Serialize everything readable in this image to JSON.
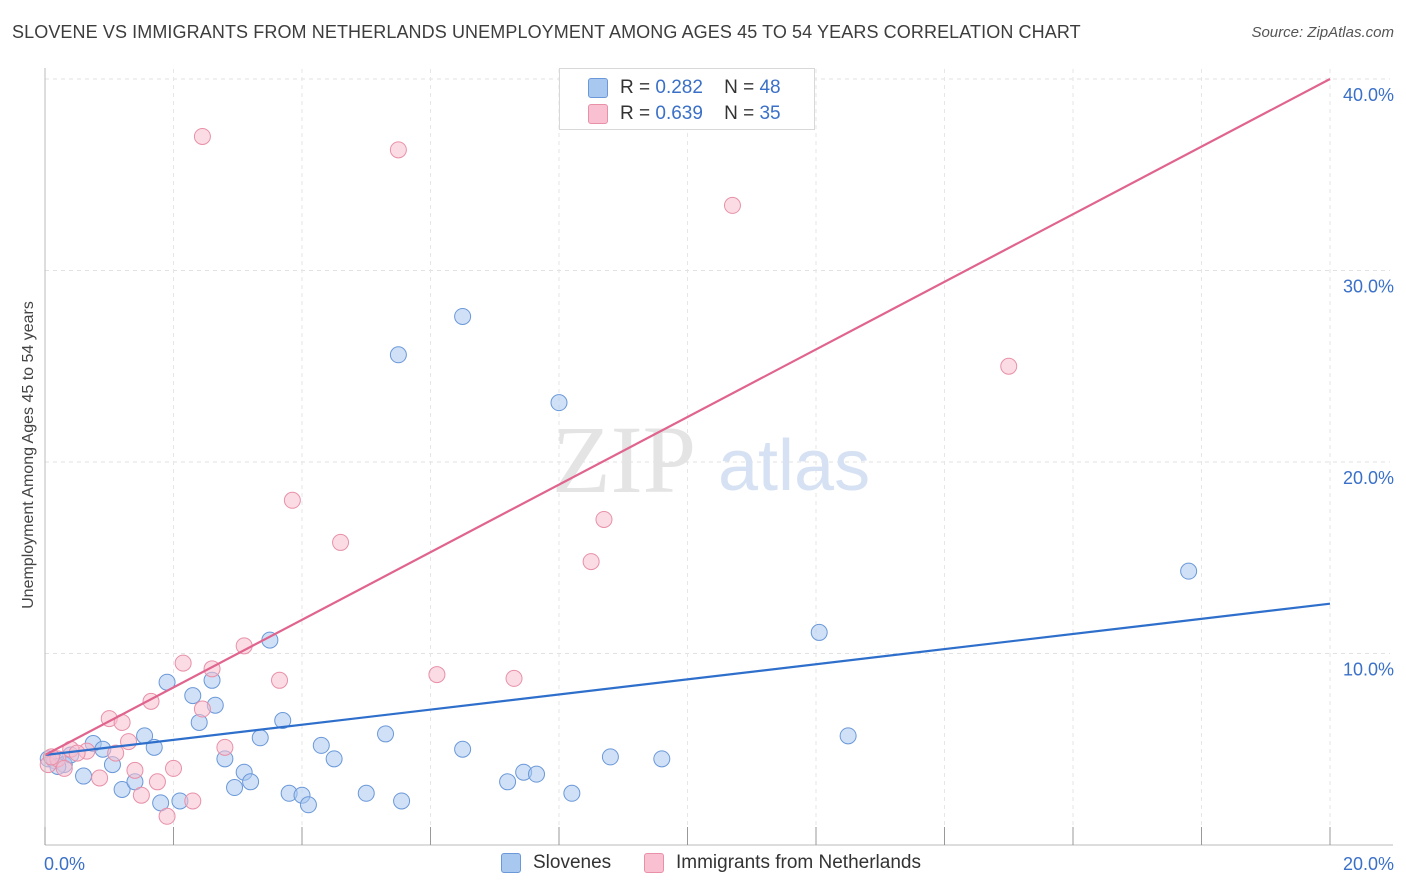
{
  "title": "SLOVENE VS IMMIGRANTS FROM NETHERLANDS UNEMPLOYMENT AMONG AGES 45 TO 54 YEARS CORRELATION CHART",
  "source": "Source: ZipAtlas.com",
  "watermark": {
    "zip": "ZIP",
    "atlas": "atlas"
  },
  "legend": {
    "r_label": "R =",
    "n_label": "N =",
    "entries": [
      {
        "r": "0.282",
        "n": "48",
        "color": "#a9c8f0",
        "border": "#6a98d8"
      },
      {
        "r": "0.639",
        "n": "35",
        "color": "#f8c0d0",
        "border": "#e890a8"
      }
    ]
  },
  "bottom_legend": [
    {
      "label": "Slovenes",
      "color": "#a9c8f0",
      "border": "#6a98d8"
    },
    {
      "label": "Immigrants from Netherlands",
      "color": "#f8c0d0",
      "border": "#e890a8"
    }
  ],
  "chart_data": {
    "type": "scatter",
    "xlabel": "",
    "ylabel": "Unemployment Among Ages 45 to 54 years",
    "xlim": [
      0,
      20
    ],
    "ylim": [
      0,
      40
    ],
    "x_tick_labels": [
      "0.0%",
      "20.0%"
    ],
    "y_tick_labels": [
      "10.0%",
      "20.0%",
      "30.0%",
      "40.0%"
    ],
    "y_ticks": [
      10,
      20,
      30,
      40
    ],
    "grid": true,
    "series": [
      {
        "name": "Slovenes",
        "color": "#6a98d8",
        "fill": "#a9c8f0",
        "trend": {
          "x": [
            0,
            20
          ],
          "y": [
            4.7,
            12.6
          ],
          "color": "#2f6fcc"
        },
        "points": [
          [
            0.05,
            4.5
          ],
          [
            0.15,
            4.4
          ],
          [
            0.3,
            4.2
          ],
          [
            0.4,
            4.7
          ],
          [
            0.6,
            3.6
          ],
          [
            0.75,
            5.3
          ],
          [
            0.9,
            5.0
          ],
          [
            1.05,
            4.2
          ],
          [
            1.2,
            2.9
          ],
          [
            1.4,
            3.3
          ],
          [
            1.55,
            5.7
          ],
          [
            1.7,
            5.1
          ],
          [
            1.8,
            2.2
          ],
          [
            1.9,
            8.5
          ],
          [
            2.1,
            2.3
          ],
          [
            2.3,
            7.8
          ],
          [
            2.4,
            6.4
          ],
          [
            2.6,
            8.6
          ],
          [
            2.65,
            7.3
          ],
          [
            2.8,
            4.5
          ],
          [
            2.95,
            3.0
          ],
          [
            3.1,
            3.8
          ],
          [
            3.2,
            3.3
          ],
          [
            3.35,
            5.6
          ],
          [
            3.5,
            10.7
          ],
          [
            3.7,
            6.5
          ],
          [
            3.8,
            2.7
          ],
          [
            4.0,
            2.6
          ],
          [
            4.1,
            2.1
          ],
          [
            4.3,
            5.2
          ],
          [
            4.5,
            4.5
          ],
          [
            5.0,
            2.7
          ],
          [
            5.3,
            5.8
          ],
          [
            5.55,
            2.3
          ],
          [
            6.5,
            5.0
          ],
          [
            7.2,
            3.3
          ],
          [
            7.45,
            3.8
          ],
          [
            7.65,
            3.7
          ],
          [
            8.2,
            2.7
          ],
          [
            8.8,
            4.6
          ],
          [
            9.6,
            4.5
          ],
          [
            12.05,
            11.1
          ],
          [
            12.5,
            5.7
          ],
          [
            17.8,
            14.3
          ],
          [
            5.5,
            25.6
          ],
          [
            6.5,
            27.6
          ],
          [
            8.0,
            23.1
          ],
          [
            0.2,
            4.1
          ]
        ]
      },
      {
        "name": "Immigrants from Netherlands",
        "color": "#e890a8",
        "fill": "#f8c0d0",
        "trend": {
          "x": [
            0,
            20
          ],
          "y": [
            4.7,
            40.0
          ],
          "color": "#e0648e"
        },
        "points": [
          [
            0.05,
            4.2
          ],
          [
            0.2,
            4.5
          ],
          [
            0.4,
            5.0
          ],
          [
            0.65,
            4.9
          ],
          [
            0.85,
            3.5
          ],
          [
            1.0,
            6.6
          ],
          [
            1.1,
            4.8
          ],
          [
            1.3,
            5.4
          ],
          [
            1.4,
            3.9
          ],
          [
            1.5,
            2.6
          ],
          [
            1.65,
            7.5
          ],
          [
            1.75,
            3.3
          ],
          [
            1.9,
            1.5
          ],
          [
            2.0,
            4.0
          ],
          [
            2.15,
            9.5
          ],
          [
            2.3,
            2.3
          ],
          [
            2.45,
            7.1
          ],
          [
            2.6,
            9.2
          ],
          [
            2.8,
            5.1
          ],
          [
            3.1,
            10.4
          ],
          [
            3.65,
            8.6
          ],
          [
            3.85,
            18.0
          ],
          [
            4.6,
            15.8
          ],
          [
            6.1,
            8.9
          ],
          [
            7.3,
            8.7
          ],
          [
            8.5,
            14.8
          ],
          [
            8.7,
            17.0
          ],
          [
            10.7,
            33.4
          ],
          [
            15.0,
            25.0
          ],
          [
            2.45,
            37.0
          ],
          [
            5.5,
            36.3
          ],
          [
            0.1,
            4.6
          ],
          [
            0.3,
            4.0
          ],
          [
            0.5,
            4.8
          ],
          [
            1.2,
            6.4
          ]
        ]
      }
    ]
  }
}
